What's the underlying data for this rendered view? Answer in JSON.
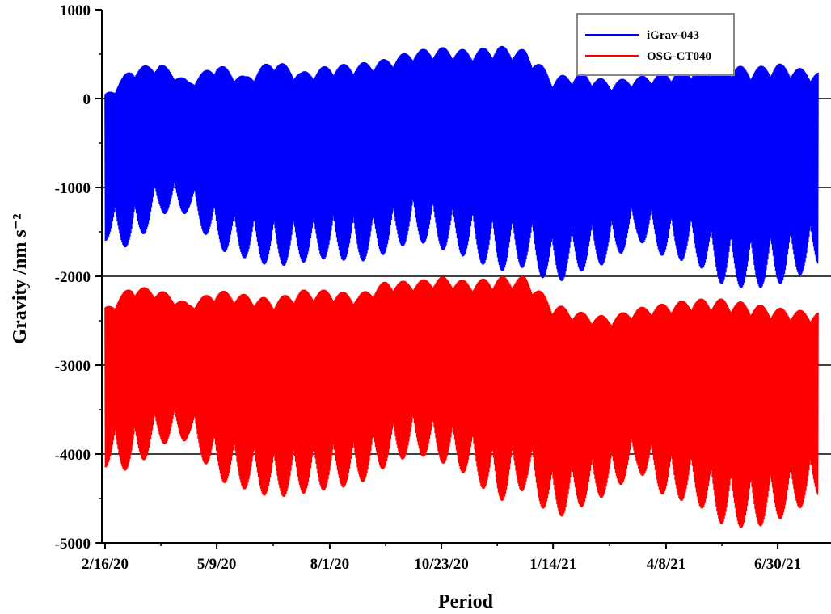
{
  "chart_data": {
    "type": "area",
    "xlabel": "Period",
    "ylabel": "Gravity /nm s⁻²",
    "ylim": [
      -5000,
      1000
    ],
    "yticks": [
      1000,
      0,
      -1000,
      -2000,
      -3000,
      -4000,
      -5000
    ],
    "xlim": [
      "2020-02-16",
      "2021-07-30"
    ],
    "xtick_labels": [
      "2/16/20",
      "5/9/20",
      "8/1/20",
      "10/23/20",
      "1/14/21",
      "4/8/21",
      "6/30/21"
    ],
    "xtick_dates": [
      "2020-02-16",
      "2020-05-09",
      "2020-08-01",
      "2020-10-23",
      "2021-01-14",
      "2021-04-08",
      "2021-06-30"
    ],
    "gridlines_y": [
      0,
      -1000,
      -2000,
      -3000,
      -4000
    ],
    "legend_position": "top-right",
    "series": [
      {
        "name": "iGrav-043",
        "color": "#0000ff",
        "x": [
          "2020-02-16",
          "2020-03-07",
          "2020-03-28",
          "2020-04-18",
          "2020-05-09",
          "2020-05-30",
          "2020-06-20",
          "2020-07-11",
          "2020-08-01",
          "2020-08-22",
          "2020-09-12",
          "2020-10-03",
          "2020-10-23",
          "2020-11-13",
          "2020-12-04",
          "2020-12-25",
          "2021-01-14",
          "2021-02-04",
          "2021-02-25",
          "2021-03-18",
          "2021-04-08",
          "2021-04-29",
          "2021-05-20",
          "2021-06-10",
          "2021-06-30",
          "2021-07-30"
        ],
        "upper": [
          50,
          350,
          400,
          200,
          400,
          250,
          450,
          300,
          380,
          400,
          450,
          550,
          580,
          550,
          600,
          550,
          250,
          300,
          200,
          250,
          300,
          350,
          400,
          350,
          400,
          300
        ],
        "lower": [
          -1600,
          -1700,
          -1300,
          -1300,
          -1700,
          -1800,
          -1900,
          -1850,
          -1800,
          -1850,
          -1750,
          -1600,
          -1700,
          -1800,
          -1950,
          -1900,
          -2100,
          -1950,
          -1850,
          -1600,
          -1800,
          -1850,
          -2100,
          -2150,
          -2100,
          -1900
        ]
      },
      {
        "name": "OSG-CT040",
        "color": "#ff0000",
        "x": [
          "2020-02-16",
          "2020-03-07",
          "2020-03-28",
          "2020-04-18",
          "2020-05-09",
          "2020-05-30",
          "2020-06-20",
          "2020-07-11",
          "2020-08-01",
          "2020-08-22",
          "2020-09-12",
          "2020-10-03",
          "2020-10-23",
          "2020-11-13",
          "2020-12-04",
          "2020-12-25",
          "2021-01-14",
          "2021-02-04",
          "2021-02-25",
          "2021-03-18",
          "2021-04-08",
          "2021-04-29",
          "2021-05-20",
          "2021-06-10",
          "2021-06-30",
          "2021-07-30"
        ],
        "upper": [
          -2350,
          -2100,
          -2150,
          -2300,
          -2150,
          -2200,
          -2250,
          -2150,
          -2150,
          -2200,
          -2050,
          -2050,
          -2000,
          -2050,
          -2000,
          -2000,
          -2300,
          -2400,
          -2450,
          -2350,
          -2300,
          -2250,
          -2250,
          -2300,
          -2350,
          -2400
        ],
        "lower": [
          -4150,
          -4200,
          -3900,
          -3850,
          -4300,
          -4400,
          -4500,
          -4450,
          -4400,
          -4350,
          -4150,
          -4000,
          -4100,
          -4250,
          -4550,
          -4400,
          -4750,
          -4600,
          -4450,
          -4200,
          -4500,
          -4550,
          -4800,
          -4850,
          -4750,
          -4500
        ]
      }
    ]
  }
}
